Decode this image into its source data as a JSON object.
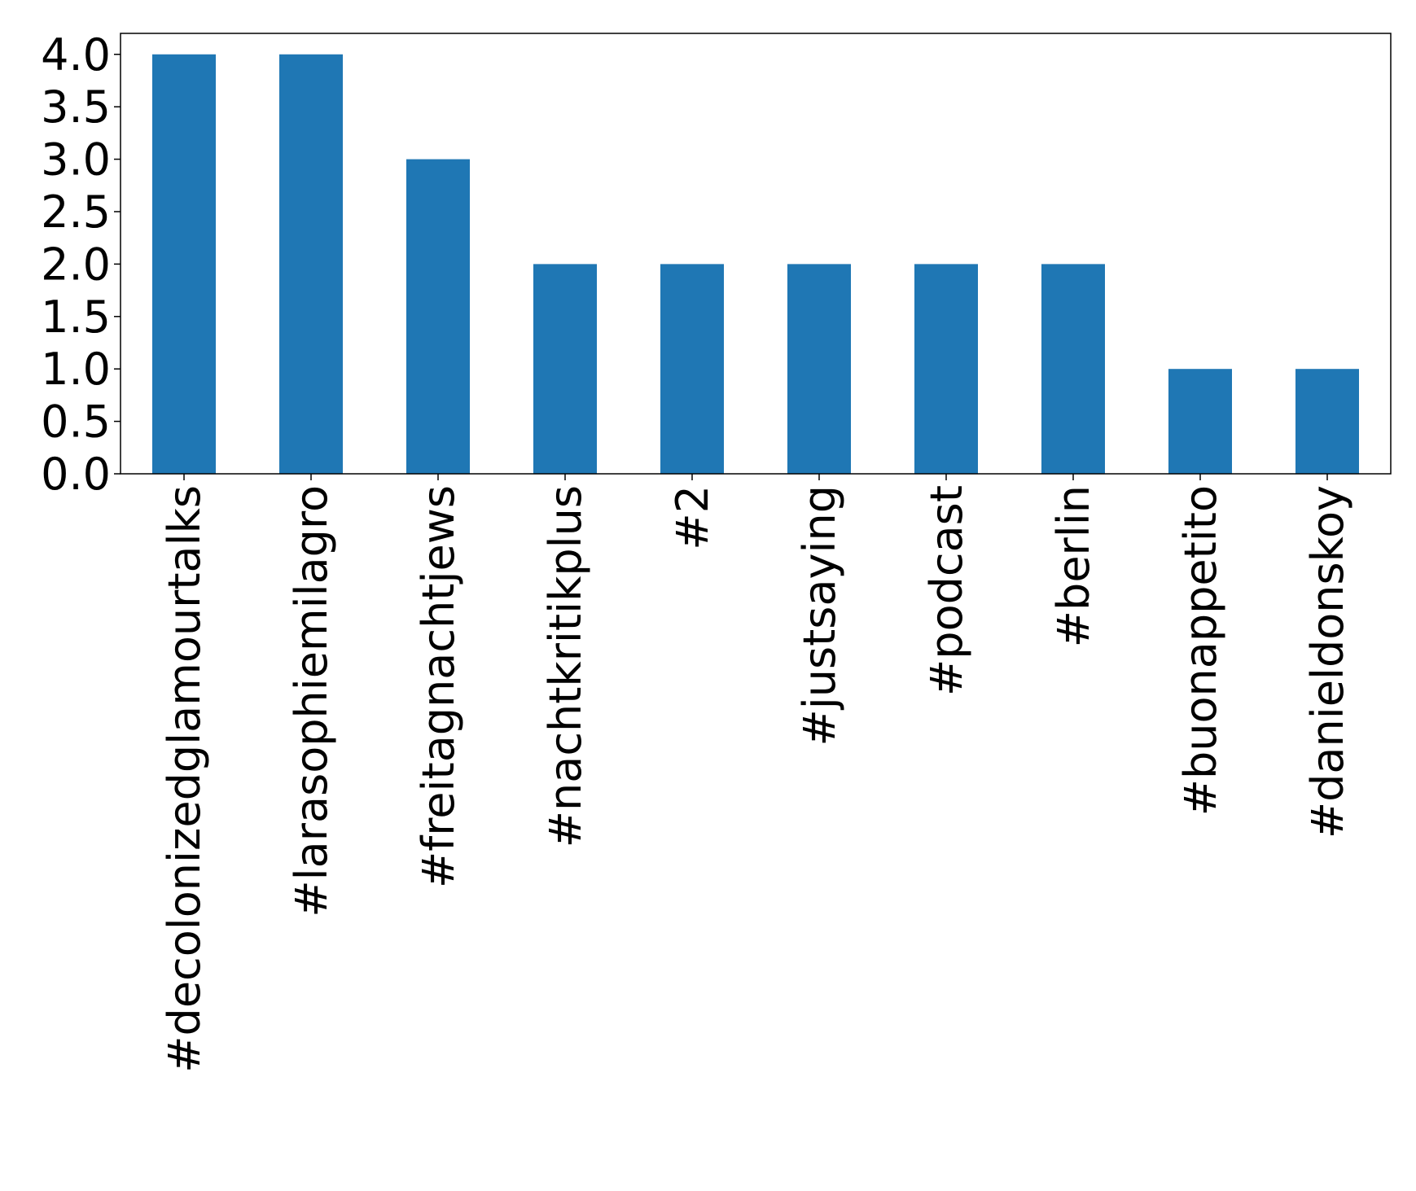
{
  "chart_data": {
    "type": "bar",
    "categories": [
      "#decolonizedglamourtalks",
      "#larasophiemilagro",
      "#freitagnachtjews",
      "#nachtkritikplus",
      "#2",
      "#justsaying",
      "#podcast",
      "#berlin",
      "#buonappetito",
      "#danieldonskoy"
    ],
    "values": [
      4,
      4,
      3,
      2,
      2,
      2,
      2,
      2,
      1,
      1
    ],
    "color": "#1f77b4",
    "ylim": [
      0,
      4.2
    ],
    "yticks": [
      {
        "value": 0,
        "label": "0.0"
      },
      {
        "value": 0.5,
        "label": "0.5"
      },
      {
        "value": 1,
        "label": "1.0"
      },
      {
        "value": 1.5,
        "label": "1.5"
      },
      {
        "value": 2,
        "label": "2.0"
      },
      {
        "value": 2.5,
        "label": "2.5"
      },
      {
        "value": 3,
        "label": "3.0"
      },
      {
        "value": 3.5,
        "label": "3.5"
      },
      {
        "value": 4,
        "label": "4.0"
      }
    ],
    "grid": false
  }
}
